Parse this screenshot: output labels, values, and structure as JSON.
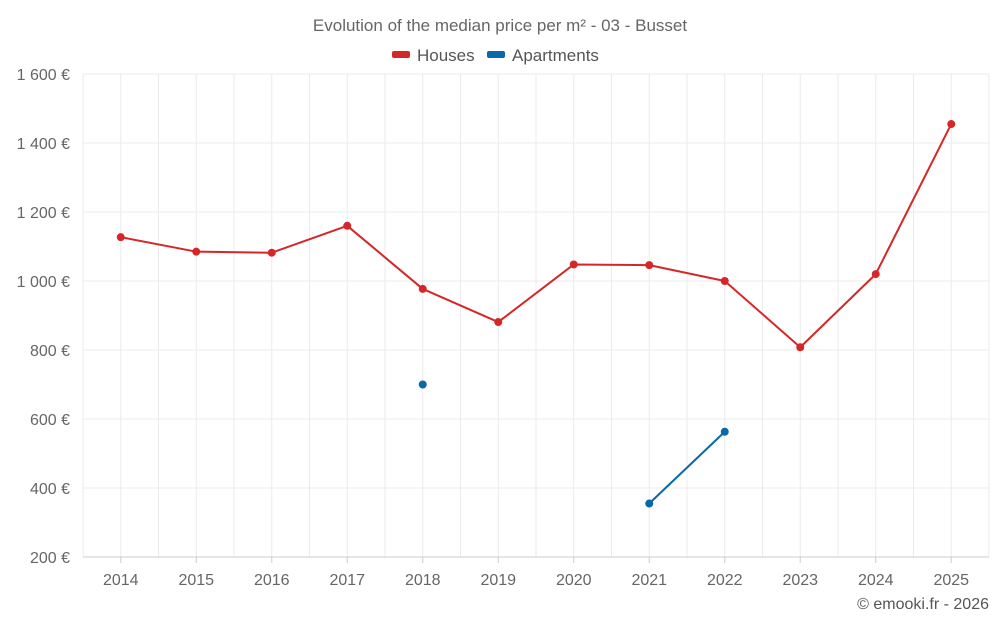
{
  "chart_data": {
    "type": "line",
    "title": "Evolution of the median price per m² - 03 - Busset",
    "categories": [
      "2014",
      "2015",
      "2016",
      "2017",
      "2018",
      "2019",
      "2020",
      "2021",
      "2022",
      "2023",
      "2024",
      "2025"
    ],
    "y_ticks": [
      200,
      400,
      600,
      800,
      1000,
      1200,
      1400,
      1600
    ],
    "y_tick_labels": [
      "200 €",
      "400 €",
      "600 €",
      "800 €",
      "1 000 €",
      "1 200 €",
      "1 400 €",
      "1 600 €"
    ],
    "ylim": [
      200,
      1600
    ],
    "grid": true,
    "legend_position": "top-center",
    "series": [
      {
        "name": "Houses",
        "color": "#d62728",
        "values": [
          1127,
          1085,
          1082,
          1160,
          977,
          881,
          1048,
          1046,
          1000,
          808,
          1020,
          1455
        ]
      },
      {
        "name": "Apartments",
        "color": "#0868a8",
        "values": [
          null,
          null,
          null,
          null,
          700,
          null,
          null,
          355,
          563,
          null,
          null,
          null
        ]
      }
    ],
    "credit": "© emooki.fr - 2026"
  }
}
